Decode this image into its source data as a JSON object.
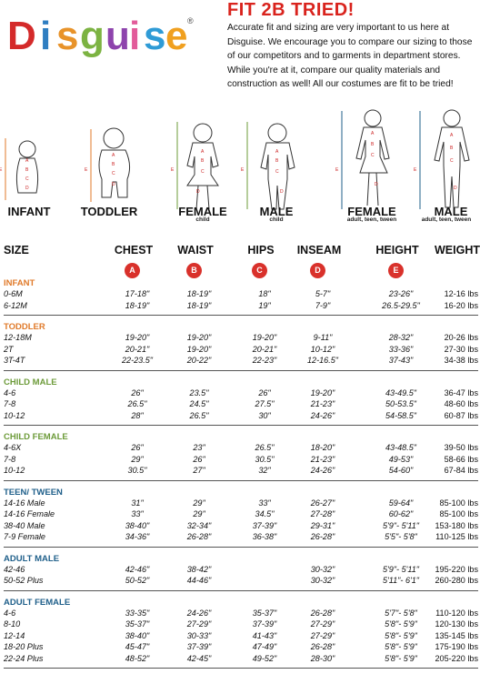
{
  "brand": {
    "logo_text": "Disguise",
    "logo_letters": [
      "D",
      "i",
      "s",
      "g",
      "u",
      "i",
      "s",
      "e"
    ],
    "logo_colors": [
      "#d42a2a",
      "#2f7ec1",
      "#e8932a",
      "#7cb342",
      "#8e44ad",
      "#e25b9a",
      "#2f9bd6",
      "#f0a020"
    ]
  },
  "intro": {
    "title": "FIT 2B TRIED!",
    "body": "Accurate fit and sizing are very important to us here at Disguise. We encourage you to compare our sizing to those of our competitors and to garments in department stores. While you're at it, compare our quality materials and construction as well! All our costumes are fit to be tried!"
  },
  "figures": [
    {
      "label": "INFANT",
      "sub": "",
      "color": "#e07a2a"
    },
    {
      "label": "TODDLER",
      "sub": "",
      "color": "#e07a2a"
    },
    {
      "label": "FEMALE",
      "sub": "child",
      "color": "#6d9b3a"
    },
    {
      "label": "MALE",
      "sub": "child",
      "color": "#6d9b3a"
    },
    {
      "label": "FEMALE",
      "sub": "adult, teen, tween",
      "color": "#1f5f8a"
    },
    {
      "label": "MALE",
      "sub": "adult, teen, tween",
      "color": "#1f5f8a"
    }
  ],
  "figure_marker_letters": [
    "A",
    "B",
    "C",
    "D",
    "E"
  ],
  "table": {
    "headers": [
      "SIZE",
      "CHEST",
      "WAIST",
      "HIPS",
      "INSEAM",
      "HEIGHT",
      "WEIGHT"
    ],
    "markers": [
      "A",
      "B",
      "C",
      "D",
      "E"
    ],
    "sections": [
      {
        "name": "INFANT",
        "color": "#e07a2a",
        "rows": [
          [
            "0-6M",
            "17-18\"",
            "18-19\"",
            "18\"",
            "5-7\"",
            "23-26\"",
            "12-16 lbs"
          ],
          [
            "6-12M",
            "18-19\"",
            "18-19\"",
            "19\"",
            "7-9\"",
            "26.5-29.5\"",
            "16-20 lbs"
          ]
        ]
      },
      {
        "name": "TODDLER",
        "color": "#e07a2a",
        "rows": [
          [
            "12-18M",
            "19-20\"",
            "19-20\"",
            "19-20\"",
            "9-11\"",
            "28-32\"",
            "20-26 lbs"
          ],
          [
            "2T",
            "20-21\"",
            "19-20\"",
            "20-21\"",
            "10-12\"",
            "33-36\"",
            "27-30 lbs"
          ],
          [
            "3T-4T",
            "22-23.5\"",
            "20-22\"",
            "22-23\"",
            "12-16.5\"",
            "37-43\"",
            "34-38 lbs"
          ]
        ]
      },
      {
        "name": "CHILD MALE",
        "color": "#6d9b3a",
        "rows": [
          [
            "4-6",
            "26\"",
            "23.5\"",
            "26\"",
            "19-20\"",
            "43-49.5\"",
            "36-47 lbs"
          ],
          [
            "7-8",
            "26.5\"",
            "24.5\"",
            "27.5\"",
            "21-23\"",
            "50-53.5\"",
            "48-60 lbs"
          ],
          [
            "10-12",
            "28\"",
            "26.5\"",
            "30\"",
            "24-26\"",
            "54-58.5\"",
            "60-87 lbs"
          ]
        ]
      },
      {
        "name": "CHILD FEMALE",
        "color": "#6d9b3a",
        "rows": [
          [
            "4-6X",
            "26\"",
            "23\"",
            "26.5\"",
            "18-20\"",
            "43-48.5\"",
            "39-50 lbs"
          ],
          [
            "7-8",
            "29\"",
            "26\"",
            "30.5\"",
            "21-23\"",
            "49-53\"",
            "58-66 lbs"
          ],
          [
            "10-12",
            "30.5\"",
            "27\"",
            "32\"",
            "24-26\"",
            "54-60\"",
            "67-84 lbs"
          ]
        ]
      },
      {
        "name": "TEEN/ TWEEN",
        "color": "#1f5f8a",
        "rows": [
          [
            "14-16 Male",
            "31\"",
            "29\"",
            "33\"",
            "26-27\"",
            "59-64\"",
            "85-100 lbs"
          ],
          [
            "14-16 Female",
            "33\"",
            "29\"",
            "34.5\"",
            "27-28\"",
            "60-62\"",
            "85-100 lbs"
          ],
          [
            "38-40 Male",
            "38-40\"",
            "32-34\"",
            "37-39\"",
            "29-31\"",
            "5'9\"- 5'11\"",
            "153-180 lbs"
          ],
          [
            "7-9 Female",
            "34-36\"",
            "26-28\"",
            "36-38\"",
            "26-28\"",
            "5'5\"- 5'8\"",
            "110-125 lbs"
          ]
        ]
      },
      {
        "name": "ADULT MALE",
        "color": "#1f5f8a",
        "rows": [
          [
            "42-46",
            "42-46\"",
            "38-42\"",
            "",
            "30-32\"",
            "5'9\"- 5'11\"",
            "195-220 lbs"
          ],
          [
            "50-52 Plus",
            "50-52\"",
            "44-46\"",
            "",
            "30-32\"",
            "5'11\"- 6'1\"",
            "260-280 lbs"
          ]
        ]
      },
      {
        "name": "ADULT FEMALE",
        "color": "#1f5f8a",
        "rows": [
          [
            "4-6",
            "33-35\"",
            "24-26\"",
            "35-37\"",
            "26-28\"",
            "5'7\"- 5'8\"",
            "110-120 lbs"
          ],
          [
            "8-10",
            "35-37\"",
            "27-29\"",
            "37-39\"",
            "27-29\"",
            "5'8\"- 5'9\"",
            "120-130 lbs"
          ],
          [
            "12-14",
            "38-40\"",
            "30-33\"",
            "41-43\"",
            "27-29\"",
            "5'8\"- 5'9\"",
            "135-145 lbs"
          ],
          [
            "18-20 Plus",
            "45-47\"",
            "37-39\"",
            "47-49\"",
            "26-28\"",
            "5'8\"- 5'9\"",
            "175-190 lbs"
          ],
          [
            "22-24 Plus",
            "48-52\"",
            "42-45\"",
            "49-52\"",
            "28-30\"",
            "5'8\"- 5'9\"",
            "205-220 lbs"
          ]
        ]
      }
    ]
  }
}
